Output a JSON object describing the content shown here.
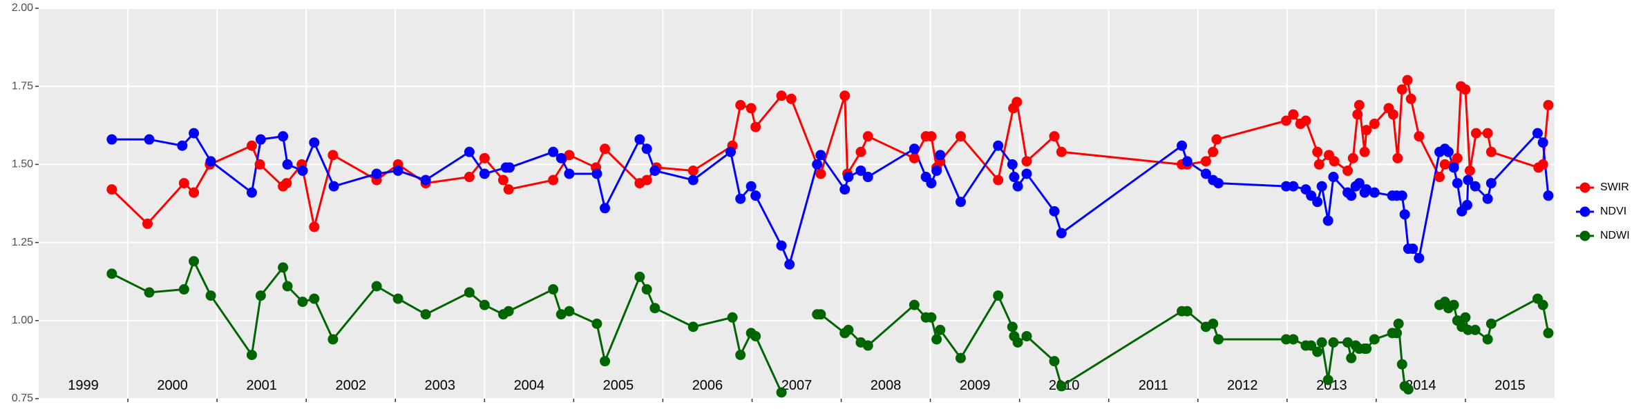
{
  "chart_data": {
    "type": "line",
    "xlim": [
      1999,
      2016
    ],
    "ylim": [
      0.75,
      2
    ],
    "xticks": [
      2000,
      2001,
      2002,
      2003,
      2004,
      2005,
      2006,
      2007,
      2008,
      2009,
      2010,
      2011,
      2012,
      2013,
      2014,
      2015
    ],
    "yticks": [
      {
        "value": 0.75,
        "label": "0.75"
      },
      {
        "value": 1,
        "label": "1.00"
      },
      1.25,
      {
        "value": 1.5,
        "label": "1.50"
      },
      1.75,
      {
        "value": 2,
        "label": "2.00"
      }
    ],
    "grid": true,
    "legend": "right",
    "annotations": [
      {
        "text": "1999",
        "x": 1999.5,
        "y": 0.79
      },
      {
        "text": "2000",
        "x": 2000.5,
        "y": 0.79
      },
      {
        "text": "2001",
        "x": 2001.5,
        "y": 0.79
      },
      {
        "text": "2002",
        "x": 2002.5,
        "y": 0.79
      },
      {
        "text": "2003",
        "x": 2003.5,
        "y": 0.79
      },
      {
        "text": "2004",
        "x": 2004.5,
        "y": 0.79
      },
      {
        "text": "2005",
        "x": 2005.5,
        "y": 0.79
      },
      {
        "text": "2006",
        "x": 2006.5,
        "y": 0.79
      },
      {
        "text": "2007",
        "x": 2007.5,
        "y": 0.79
      },
      {
        "text": "2008",
        "x": 2008.5,
        "y": 0.79
      },
      {
        "text": "2009",
        "x": 2009.5,
        "y": 0.79
      },
      {
        "text": "2010",
        "x": 2010.5,
        "y": 0.79
      },
      {
        "text": "2011",
        "x": 2011.5,
        "y": 0.79
      },
      {
        "text": "2012",
        "x": 2012.5,
        "y": 0.79
      },
      {
        "text": "2013",
        "x": 2013.5,
        "y": 0.79
      },
      {
        "text": "2014",
        "x": 2014.5,
        "y": 0.79
      },
      {
        "text": "2015",
        "x": 2015.5,
        "y": 0.79
      }
    ],
    "series": [
      {
        "name": "SWIR",
        "color": "#ff0000",
        "x": [
          1999.82,
          2000.22,
          2000.63,
          2000.74,
          2000.92,
          2001.39,
          2001.48,
          2001.74,
          2001.78,
          2001.95,
          2002.09,
          2002.3,
          2002.79,
          2003.03,
          2003.34,
          2003.83,
          2004.0,
          2004.21,
          2004.27,
          2004.77,
          2004.95,
          2005.25,
          2005.35,
          2005.74,
          2005.82,
          2005.93,
          2006.34,
          2006.78,
          2006.87,
          2006.99,
          2007.04,
          2007.33,
          2007.44,
          2007.77,
          2008.04,
          2008.07,
          2008.22,
          2008.3,
          2008.82,
          2008.95,
          2009.01,
          2009.07,
          2009.11,
          2009.34,
          2009.76,
          2009.93,
          2009.97,
          2010.08,
          2010.39,
          2010.47,
          2011.82,
          2011.88,
          2012.09,
          2012.17,
          2012.21,
          2012.99,
          2013.07,
          2013.15,
          2013.21,
          2013.34,
          2013.36,
          2013.47,
          2013.53,
          2013.68,
          2013.74,
          2013.79,
          2013.81,
          2013.87,
          2013.89,
          2013.98,
          2014.14,
          2014.19,
          2014.24,
          2014.29,
          2014.35,
          2014.39,
          2014.48,
          2014.71,
          2014.77,
          2014.87,
          2014.91,
          2014.95,
          2015.0,
          2015.05,
          2015.12,
          2015.25,
          2015.29,
          2015.82,
          2015.87,
          2015.93
        ],
        "values": [
          1.42,
          1.31,
          1.44,
          1.41,
          1.5,
          1.56,
          1.5,
          1.43,
          1.44,
          1.5,
          1.3,
          1.53,
          1.45,
          1.5,
          1.44,
          1.46,
          1.52,
          1.45,
          1.42,
          1.45,
          1.53,
          1.49,
          1.55,
          1.44,
          1.45,
          1.49,
          1.48,
          1.56,
          1.69,
          1.68,
          1.62,
          1.72,
          1.71,
          1.47,
          1.72,
          1.47,
          1.54,
          1.59,
          1.52,
          1.59,
          1.59,
          1.49,
          1.51,
          1.59,
          1.45,
          1.68,
          1.7,
          1.51,
          1.59,
          1.54,
          1.5,
          1.5,
          1.51,
          1.54,
          1.58,
          1.64,
          1.66,
          1.63,
          1.64,
          1.54,
          1.5,
          1.53,
          1.51,
          1.48,
          1.52,
          1.66,
          1.69,
          1.54,
          1.61,
          1.63,
          1.68,
          1.66,
          1.52,
          1.74,
          1.77,
          1.71,
          1.59,
          1.46,
          1.5,
          1.5,
          1.52,
          1.75,
          1.74,
          1.48,
          1.6,
          1.6,
          1.54,
          1.49,
          1.5,
          1.69
        ]
      },
      {
        "name": "NDVI",
        "color": "#0000ff",
        "x": [
          1999.82,
          2000.24,
          2000.61,
          2000.74,
          2000.93,
          2001.39,
          2001.49,
          2001.74,
          2001.79,
          2001.96,
          2002.09,
          2002.31,
          2002.79,
          2003.03,
          2003.34,
          2003.83,
          2004.0,
          2004.24,
          2004.28,
          2004.77,
          2004.86,
          2004.95,
          2005.26,
          2005.35,
          2005.74,
          2005.82,
          2005.91,
          2006.34,
          2006.76,
          2006.87,
          2006.99,
          2007.04,
          2007.33,
          2007.42,
          2007.73,
          2007.77,
          2008.04,
          2008.08,
          2008.22,
          2008.3,
          2008.82,
          2008.95,
          2009.01,
          2009.07,
          2009.11,
          2009.34,
          2009.76,
          2009.92,
          2009.94,
          2009.98,
          2010.08,
          2010.39,
          2010.47,
          2011.82,
          2011.88,
          2012.09,
          2012.17,
          2012.23,
          2012.99,
          2013.07,
          2013.21,
          2013.27,
          2013.34,
          2013.39,
          2013.46,
          2013.52,
          2013.68,
          2013.72,
          2013.77,
          2013.81,
          2013.87,
          2013.89,
          2013.98,
          2014.18,
          2014.23,
          2014.29,
          2014.32,
          2014.36,
          2014.41,
          2014.48,
          2014.71,
          2014.77,
          2014.81,
          2014.87,
          2014.91,
          2014.96,
          2015.02,
          2015.03,
          2015.11,
          2015.25,
          2015.29,
          2015.81,
          2015.87,
          2015.93
        ],
        "values": [
          1.58,
          1.58,
          1.56,
          1.6,
          1.51,
          1.41,
          1.58,
          1.59,
          1.5,
          1.48,
          1.57,
          1.43,
          1.47,
          1.48,
          1.45,
          1.54,
          1.47,
          1.49,
          1.49,
          1.54,
          1.52,
          1.47,
          1.47,
          1.36,
          1.58,
          1.55,
          1.48,
          1.45,
          1.54,
          1.39,
          1.43,
          1.4,
          1.24,
          1.18,
          1.5,
          1.53,
          1.42,
          1.46,
          1.48,
          1.46,
          1.55,
          1.46,
          1.44,
          1.48,
          1.53,
          1.38,
          1.56,
          1.5,
          1.46,
          1.43,
          1.47,
          1.35,
          1.28,
          1.56,
          1.51,
          1.47,
          1.45,
          1.44,
          1.43,
          1.43,
          1.42,
          1.4,
          1.38,
          1.43,
          1.32,
          1.46,
          1.41,
          1.4,
          1.43,
          1.44,
          1.41,
          1.42,
          1.41,
          1.4,
          1.4,
          1.4,
          1.34,
          1.23,
          1.23,
          1.2,
          1.54,
          1.55,
          1.54,
          1.49,
          1.44,
          1.35,
          1.37,
          1.45,
          1.43,
          1.39,
          1.44,
          1.6,
          1.57,
          1.4
        ]
      },
      {
        "name": "NDWI",
        "color": "#006400",
        "x": [
          1999.82,
          2000.24,
          2000.63,
          2000.74,
          2000.93,
          2001.39,
          2001.49,
          2001.74,
          2001.79,
          2001.96,
          2002.09,
          2002.3,
          2002.79,
          2003.03,
          2003.34,
          2003.83,
          2004.0,
          2004.21,
          2004.27,
          2004.77,
          2004.86,
          2004.95,
          2005.26,
          2005.35,
          2005.74,
          2005.82,
          2005.91,
          2006.34,
          2006.78,
          2006.87,
          2006.99,
          2007.04,
          2007.33,
          null,
          2007.73,
          2007.77,
          2008.04,
          2008.08,
          2008.22,
          2008.3,
          2008.82,
          2008.95,
          2009.01,
          2009.07,
          2009.11,
          2009.34,
          2009.76,
          2009.92,
          2009.94,
          2009.98,
          2010.08,
          2010.39,
          2010.47,
          2011.82,
          2011.88,
          2012.09,
          2012.17,
          2012.23,
          2012.99,
          2013.07,
          2013.21,
          2013.27,
          2013.34,
          2013.39,
          2013.46,
          2013.52,
          2013.68,
          2013.72,
          2013.77,
          2013.81,
          2013.87,
          2013.89,
          2013.98,
          2014.18,
          2014.23,
          2014.25,
          2014.29,
          2014.32,
          2014.36,
          null,
          2014.71,
          2014.77,
          2014.81,
          2014.87,
          2014.91,
          2014.96,
          2015.0,
          2015.03,
          2015.11,
          2015.25,
          2015.29,
          2015.81,
          2015.87,
          2015.93
        ],
        "values": [
          1.15,
          1.09,
          1.1,
          1.19,
          1.08,
          0.89,
          1.08,
          1.17,
          1.11,
          1.06,
          1.07,
          0.94,
          1.11,
          1.07,
          1.02,
          1.09,
          1.05,
          1.02,
          1.03,
          1.1,
          1.02,
          1.03,
          0.99,
          0.87,
          1.14,
          1.1,
          1.04,
          0.98,
          1.01,
          0.89,
          0.96,
          0.95,
          0.77,
          null,
          1.02,
          1.02,
          0.96,
          0.97,
          0.93,
          0.92,
          1.05,
          1.01,
          1.01,
          0.94,
          0.97,
          0.88,
          1.08,
          0.98,
          0.95,
          0.93,
          0.95,
          0.87,
          0.79,
          1.03,
          1.03,
          0.98,
          0.99,
          0.94,
          0.94,
          0.94,
          0.92,
          0.92,
          0.9,
          0.93,
          0.81,
          0.93,
          0.93,
          0.88,
          0.92,
          0.91,
          0.91,
          0.91,
          0.94,
          0.96,
          0.96,
          0.99,
          0.86,
          0.79,
          0.78,
          null,
          1.05,
          1.06,
          1.04,
          1.05,
          1.0,
          0.98,
          1.01,
          0.97,
          0.97,
          0.94,
          0.99,
          1.07,
          1.05,
          0.96
        ]
      }
    ]
  }
}
